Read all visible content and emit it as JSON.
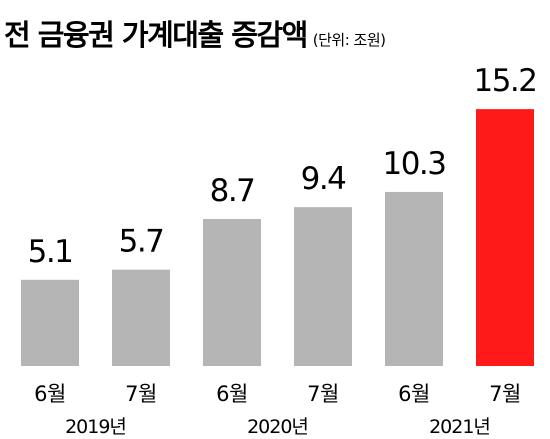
{
  "header": {
    "title": "전 금융권 가계대출 증감액",
    "unit": "(단위: 조원)"
  },
  "chart_data": {
    "type": "bar",
    "title": "전 금융권 가계대출 증감액",
    "unit": "(단위: 조원)",
    "categories": [
      "6월",
      "7월",
      "6월",
      "7월",
      "6월",
      "7월"
    ],
    "year_groups": [
      {
        "label": "2019년",
        "start": 0,
        "end": 1
      },
      {
        "label": "2020년",
        "start": 2,
        "end": 3
      },
      {
        "label": "2021년",
        "start": 4,
        "end": 5
      }
    ],
    "values": [
      5.1,
      5.7,
      8.7,
      9.4,
      10.3,
      15.2
    ],
    "value_labels": [
      "5.1",
      "5.7",
      "8.7",
      "9.4",
      "10.3",
      "15.2"
    ],
    "ylim": [
      0,
      16
    ],
    "grid": false,
    "legend": "none",
    "colors": {
      "bar": "#b5b5b5",
      "highlight": "#ff1a1a",
      "highlight_index": 5
    }
  }
}
